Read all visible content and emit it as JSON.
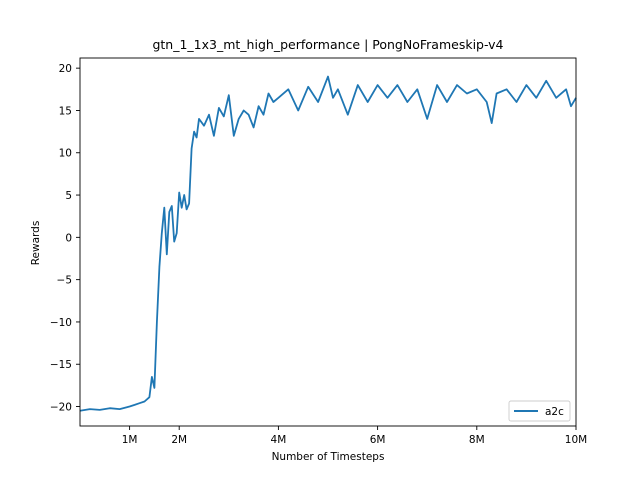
{
  "chart_data": {
    "type": "line",
    "title": "gtn_1_1x3_mt_high_performance | PongNoFrameskip-v4",
    "xlabel": "Number of Timesteps",
    "ylabel": "Rewards",
    "xlim": [
      0,
      10000000
    ],
    "ylim": [
      -22.3,
      21.2
    ],
    "grid": false,
    "legend_position": "lower-right",
    "x_ticks": [
      {
        "value": 1000000,
        "label": "1M"
      },
      {
        "value": 2000000,
        "label": "2M"
      },
      {
        "value": 4000000,
        "label": "4M"
      },
      {
        "value": 6000000,
        "label": "6M"
      },
      {
        "value": 8000000,
        "label": "8M"
      },
      {
        "value": 10000000,
        "label": "10M"
      }
    ],
    "y_ticks": [
      {
        "value": 20,
        "label": "20"
      },
      {
        "value": 15,
        "label": "15"
      },
      {
        "value": 10,
        "label": "10"
      },
      {
        "value": 5,
        "label": "5"
      },
      {
        "value": 0,
        "label": "0"
      },
      {
        "value": -5,
        "label": "−5"
      },
      {
        "value": -10,
        "label": "−10"
      },
      {
        "value": -15,
        "label": "−15"
      },
      {
        "value": -20,
        "label": "−20"
      }
    ],
    "series": [
      {
        "name": "a2c",
        "color": "#1f77b4",
        "x": [
          0,
          200000,
          400000,
          600000,
          800000,
          1000000,
          1100000,
          1200000,
          1300000,
          1400000,
          1450000,
          1500000,
          1550000,
          1600000,
          1650000,
          1700000,
          1750000,
          1800000,
          1850000,
          1900000,
          1950000,
          2000000,
          2050000,
          2100000,
          2150000,
          2200000,
          2250000,
          2300000,
          2350000,
          2400000,
          2500000,
          2600000,
          2700000,
          2800000,
          2900000,
          3000000,
          3100000,
          3200000,
          3300000,
          3400000,
          3500000,
          3600000,
          3700000,
          3800000,
          3900000,
          4000000,
          4200000,
          4400000,
          4600000,
          4800000,
          5000000,
          5100000,
          5200000,
          5400000,
          5600000,
          5800000,
          6000000,
          6200000,
          6400000,
          6600000,
          6800000,
          7000000,
          7200000,
          7400000,
          7600000,
          7800000,
          8000000,
          8200000,
          8300000,
          8400000,
          8600000,
          8800000,
          9000000,
          9200000,
          9400000,
          9600000,
          9800000,
          9900000,
          10000000
        ],
        "values": [
          -20.5,
          -20.3,
          -20.4,
          -20.2,
          -20.3,
          -20.0,
          -19.8,
          -19.6,
          -19.4,
          -18.9,
          -16.5,
          -17.8,
          -10.0,
          -3.5,
          0.5,
          3.5,
          -2.0,
          3.0,
          3.7,
          -0.5,
          0.5,
          5.3,
          3.5,
          5.0,
          3.3,
          4.0,
          10.5,
          12.5,
          11.8,
          14.0,
          13.2,
          14.5,
          12.0,
          15.3,
          14.3,
          16.8,
          12.0,
          14.0,
          15.0,
          14.5,
          13.0,
          15.5,
          14.5,
          17.0,
          16.0,
          16.5,
          17.5,
          15.0,
          17.8,
          16.0,
          19.0,
          16.5,
          17.5,
          14.5,
          18.0,
          16.0,
          18.0,
          16.5,
          18.0,
          16.0,
          17.5,
          14.0,
          18.0,
          16.0,
          18.0,
          17.0,
          17.5,
          16.0,
          13.5,
          17.0,
          17.5,
          16.0,
          18.0,
          16.5,
          18.5,
          16.5,
          17.5,
          15.5,
          16.5
        ]
      }
    ]
  }
}
